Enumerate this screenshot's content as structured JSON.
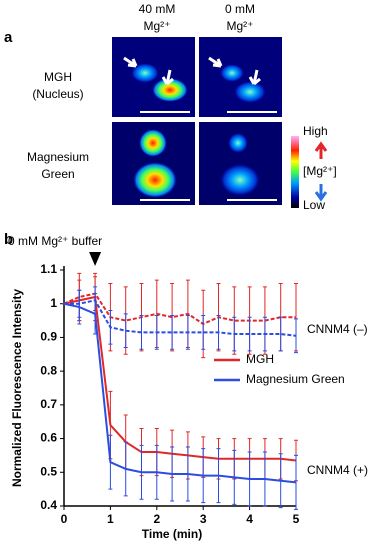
{
  "panel_a": {
    "label": "a",
    "columns": [
      [
        "40 mM",
        "Mg²⁺"
      ],
      [
        "0 mM",
        "Mg²⁺"
      ]
    ],
    "rows": [
      [
        "MGH",
        "(Nucleus)"
      ],
      [
        "Magnesium",
        "Green"
      ]
    ],
    "colorbar": {
      "high": "High",
      "title": "[Mg²⁺]",
      "low": "Low"
    }
  },
  "chart_data": {
    "type": "line",
    "panel_label": "b",
    "annotation": "0 mM Mg²⁺ buffer",
    "annotation_x": 0.67,
    "group_labels": {
      "control": "CNNM4 (–)",
      "main": "CNNM4 (+)"
    },
    "xlabel": "Time (min)",
    "ylabel": "Normalized Fluorescence Intensity",
    "x": [
      0,
      0.33,
      0.67,
      1,
      1.33,
      1.67,
      2,
      2.33,
      2.67,
      3,
      3.33,
      3.67,
      4,
      4.33,
      4.67,
      5
    ],
    "xlim": [
      0,
      5
    ],
    "xticks": [
      0,
      1,
      2,
      3,
      4,
      5
    ],
    "ylim": [
      0.4,
      1.1
    ],
    "yticks": [
      0.4,
      0.5,
      0.6,
      0.7,
      0.8,
      0.9,
      1,
      1.1
    ],
    "series": [
      {
        "name": "MGH",
        "color": "#e0282a",
        "values": [
          1.0,
          1.01,
          1.02,
          0.64,
          0.59,
          0.56,
          0.56,
          0.555,
          0.55,
          0.545,
          0.54,
          0.54,
          0.54,
          0.54,
          0.54,
          0.535
        ],
        "errors": [
          0.0,
          0.06,
          0.07,
          0.1,
          0.08,
          0.07,
          0.07,
          0.07,
          0.07,
          0.06,
          0.06,
          0.06,
          0.06,
          0.06,
          0.06,
          0.06
        ],
        "control_values": [
          1.0,
          1.02,
          1.03,
          0.96,
          0.95,
          0.96,
          0.97,
          0.96,
          0.97,
          0.94,
          0.96,
          0.95,
          0.95,
          0.95,
          0.96,
          0.96
        ],
        "control_errors": [
          0.0,
          0.07,
          0.05,
          0.1,
          0.1,
          0.1,
          0.1,
          0.1,
          0.1,
          0.1,
          0.1,
          0.1,
          0.1,
          0.1,
          0.1,
          0.1
        ]
      },
      {
        "name": "Magnesium Green",
        "color": "#2b4de0",
        "values": [
          1.0,
          0.99,
          0.97,
          0.53,
          0.51,
          0.5,
          0.5,
          0.495,
          0.495,
          0.49,
          0.49,
          0.485,
          0.48,
          0.48,
          0.475,
          0.47
        ],
        "errors": [
          0.0,
          0.05,
          0.06,
          0.08,
          0.08,
          0.08,
          0.08,
          0.08,
          0.08,
          0.08,
          0.08,
          0.08,
          0.08,
          0.08,
          0.08,
          0.08
        ],
        "control_values": [
          1.0,
          1.0,
          1.01,
          0.93,
          0.92,
          0.915,
          0.915,
          0.915,
          0.915,
          0.915,
          0.915,
          0.91,
          0.91,
          0.91,
          0.91,
          0.905
        ],
        "control_errors": [
          0.0,
          0.04,
          0.04,
          0.05,
          0.05,
          0.05,
          0.05,
          0.05,
          0.05,
          0.05,
          0.05,
          0.05,
          0.05,
          0.05,
          0.05,
          0.05
        ]
      }
    ]
  }
}
